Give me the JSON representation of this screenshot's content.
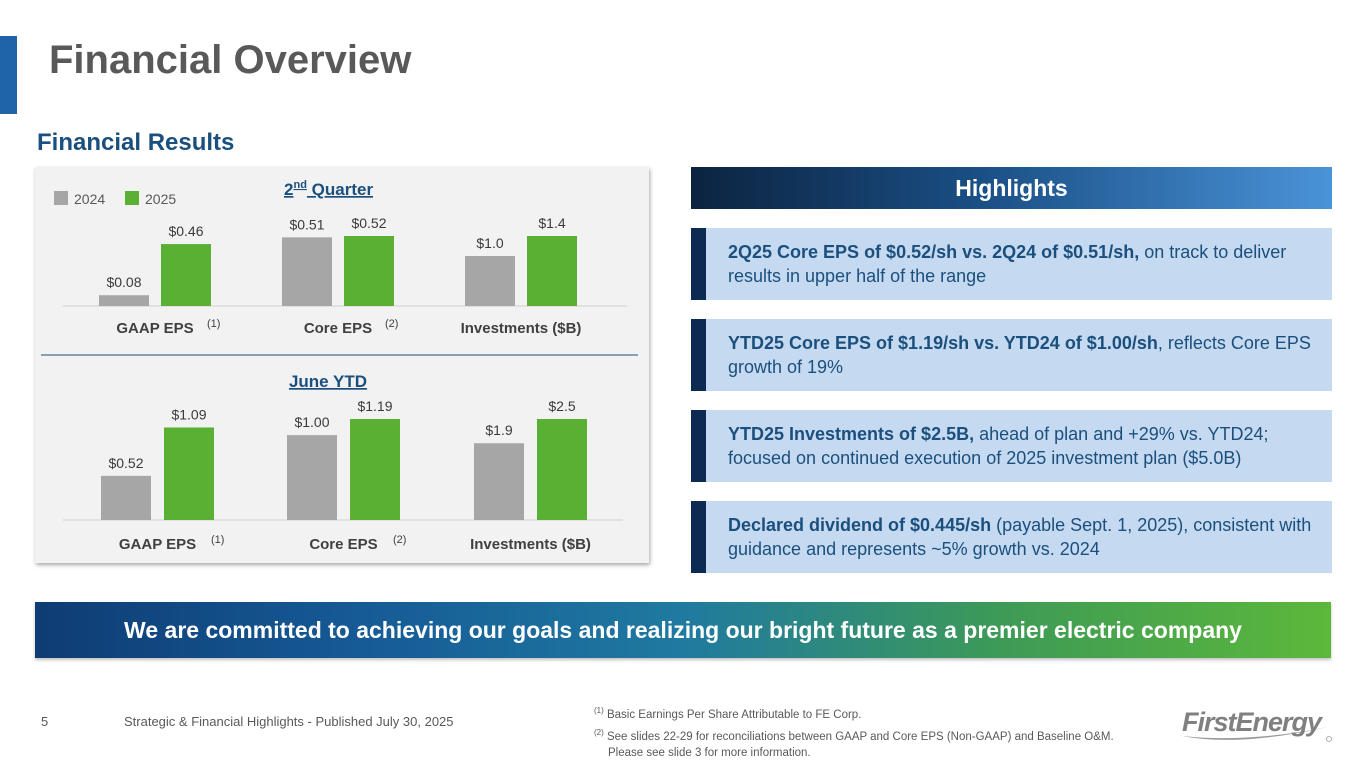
{
  "page": {
    "title": "Financial Overview",
    "section_title": "Financial Results",
    "page_number": "5",
    "footer": "Strategic & Financial Highlights - Published July 30, 2025",
    "footnote1_marker": "(1)",
    "footnote1": "Basic Earnings Per Share Attributable to FE Corp.",
    "footnote2_marker": "(2)",
    "footnote2_line1": "See slides 22-29 for reconciliations between GAAP and Core EPS (Non-GAAP) and Baseline O&M.",
    "footnote2_line2": "Please see slide 3 for more information.",
    "logo_text": "FirstEnergy"
  },
  "colors": {
    "series_2024": "#a6a6a6",
    "series_2025": "#5ab032",
    "navy": "#0c2a52",
    "title_blue": "#1b4f7e"
  },
  "chart_data": [
    {
      "type": "bar",
      "title_main": "2",
      "title_sup": "nd",
      "title_rest": " Quarter",
      "legend": [
        "2024",
        "2025"
      ],
      "categories": [
        "GAAP EPS",
        "Core EPS",
        "Investments ($B)"
      ],
      "category_notes": [
        "(1)",
        "(2)",
        ""
      ],
      "series": [
        {
          "name": "2024",
          "values": [
            0.08,
            0.51,
            1.0
          ],
          "labels": [
            "$0.08",
            "$0.51",
            "$1.0"
          ]
        },
        {
          "name": "2025",
          "values": [
            0.46,
            0.52,
            1.4
          ],
          "labels": [
            "$0.46",
            "$0.52",
            "$1.4"
          ]
        }
      ],
      "scale_groups": [
        [
          0,
          1
        ],
        [
          2
        ]
      ]
    },
    {
      "type": "bar",
      "title_main": "June YTD",
      "categories": [
        "GAAP EPS",
        "Core EPS",
        "Investments ($B)"
      ],
      "category_notes": [
        "(1)",
        "(2)",
        ""
      ],
      "series": [
        {
          "name": "2024",
          "values": [
            0.52,
            1.0,
            1.9
          ],
          "labels": [
            "$0.52",
            "$1.00",
            "$1.9"
          ]
        },
        {
          "name": "2025",
          "values": [
            1.09,
            1.19,
            2.5
          ],
          "labels": [
            "$1.09",
            "$1.19",
            "$2.5"
          ]
        }
      ],
      "scale_groups": [
        [
          0,
          1
        ],
        [
          2
        ]
      ]
    }
  ],
  "highlights": {
    "header": "Highlights",
    "items": [
      {
        "bold": "2Q25 Core EPS of $0.52/sh vs. 2Q24 of $0.51/sh,",
        "text": " on track to deliver results in upper half of the range"
      },
      {
        "bold": "YTD25 Core EPS of $1.19/sh vs. YTD24 of $1.00/sh",
        "text": ", reflects Core EPS growth of 19%"
      },
      {
        "bold": "YTD25 Investments of $2.5B,",
        "text": " ahead of plan and +29% vs. YTD24; focused on continued execution of 2025 investment plan ($5.0B)"
      },
      {
        "bold": "Declared dividend of $0.445/sh",
        "text": " (payable Sept. 1, 2025), consistent with guidance and represents ~5% growth vs. 2024"
      }
    ]
  },
  "banner": "We are committed to achieving our goals and realizing our bright future as a premier electric company"
}
